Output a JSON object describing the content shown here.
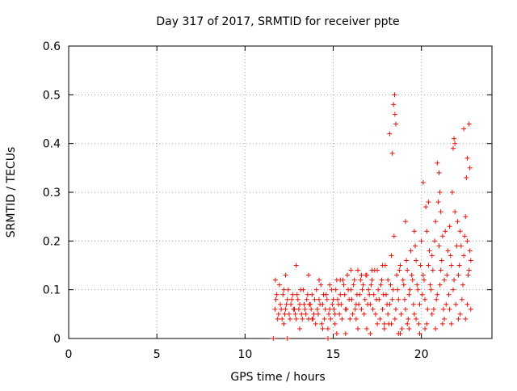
{
  "chart_data": {
    "type": "scatter",
    "title": "Day 317 of 2017, SRMTID for receiver ppte",
    "xlabel": "GPS time / hours",
    "ylabel": "SRMTID / TECUs",
    "xlim": [
      0,
      24
    ],
    "ylim": [
      0,
      0.6
    ],
    "x_ticks": [
      "0",
      "5",
      "10",
      "15",
      "20"
    ],
    "y_ticks": [
      "0",
      "0.1",
      "0.2",
      "0.3",
      "0.4",
      "0.5",
      "0.6"
    ],
    "grid": true,
    "marker": "plus",
    "color": "#e8120a",
    "series": [
      {
        "x": [
          11.7,
          11.8,
          11.9,
          12.0,
          12.1,
          12.2,
          12.3,
          12.4,
          12.5,
          12.6,
          12.7,
          12.8,
          12.9,
          13.0,
          13.1,
          13.2,
          13.3,
          13.4,
          13.5,
          13.6,
          13.7,
          13.8,
          13.9,
          14.0,
          14.1,
          14.2,
          14.3,
          14.4,
          14.5,
          14.6,
          14.7,
          14.8,
          14.9,
          15.0,
          15.1,
          15.2,
          15.3,
          15.4,
          15.5,
          15.6,
          15.7,
          15.8,
          15.9,
          16.0,
          16.1,
          16.2,
          16.3,
          16.4,
          16.5,
          16.6,
          16.7,
          16.8,
          16.9,
          17.0,
          17.1,
          17.2,
          17.3,
          17.4,
          17.5,
          17.6,
          17.7,
          17.8,
          17.9,
          18.0,
          18.1,
          18.2,
          18.3,
          18.4,
          18.5,
          18.6,
          18.7,
          18.8,
          18.9,
          19.0,
          19.1,
          19.2,
          19.3,
          19.4,
          19.5,
          19.6,
          19.7,
          19.8,
          19.9,
          20.0,
          20.1,
          20.2,
          20.3,
          20.4,
          20.5,
          20.6,
          20.7,
          20.8,
          20.9,
          21.0,
          21.1,
          21.2,
          21.3,
          21.4,
          21.5,
          21.6,
          21.7,
          21.8,
          21.9,
          22.0,
          22.1,
          22.2,
          22.3,
          22.4,
          22.5,
          22.6,
          22.7,
          22.8,
          11.75,
          11.85,
          11.95,
          12.05,
          12.15,
          12.25,
          12.35,
          12.45,
          12.55,
          12.65,
          12.75,
          12.85,
          12.95,
          13.05,
          13.15,
          13.25,
          13.35,
          13.45,
          13.55,
          13.65,
          13.75,
          13.85,
          13.95,
          14.05,
          14.15,
          14.25,
          14.35,
          14.45,
          14.55,
          14.65,
          14.75,
          14.85,
          14.95,
          15.05,
          15.15,
          15.25,
          15.35,
          15.45,
          15.55,
          15.65,
          15.75,
          15.85,
          15.95,
          16.05,
          16.15,
          16.25,
          16.35,
          16.45,
          16.55,
          16.65,
          16.75,
          16.85,
          16.95,
          17.05,
          17.15,
          17.25,
          17.35,
          17.45,
          17.55,
          17.65,
          17.75,
          17.85,
          17.95,
          18.05,
          18.15,
          18.25,
          18.35,
          18.45,
          18.55,
          18.65,
          18.75,
          18.85,
          18.95,
          19.05,
          19.15,
          19.25,
          19.35,
          19.45,
          19.55,
          19.65,
          19.75,
          19.85,
          19.95,
          20.05,
          20.15,
          20.25,
          20.35,
          20.45,
          20.55,
          20.65,
          20.75,
          20.85,
          20.95,
          21.05,
          21.15,
          21.25,
          21.35,
          21.45,
          21.55,
          21.65,
          21.75,
          21.85,
          21.95,
          22.05,
          22.15,
          22.25,
          22.35,
          22.45,
          22.55,
          22.65,
          22.75,
          11.72,
          12.3,
          12.9,
          13.6,
          14.2,
          14.8,
          15.4,
          16.0,
          16.6,
          17.2,
          17.8,
          18.2,
          18.35,
          18.42,
          18.48,
          18.5,
          18.55,
          19.1,
          19.6,
          20.1,
          20.4,
          20.9,
          21.0,
          21.05,
          21.1,
          21.8,
          21.85,
          21.9,
          22.4,
          22.6,
          22.7,
          22.75,
          11.6,
          12.4,
          14.7,
          15.2,
          16.4,
          17.1,
          17.9,
          18.3,
          18.8,
          19.3,
          19.9,
          20.3,
          20.8,
          21.3,
          21.7,
          22.2,
          22.5,
          22.8,
          12.2,
          13.1,
          13.8,
          14.4,
          15.1,
          15.7,
          16.3,
          16.9,
          17.5,
          18.1,
          18.7,
          19.2,
          19.7,
          20.2,
          20.6,
          21.2,
          21.6,
          22.1,
          22.6
        ],
        "y": [
          0.06,
          0.09,
          0.05,
          0.07,
          0.04,
          0.1,
          0.06,
          0.08,
          0.05,
          0.07,
          0.09,
          0.06,
          0.04,
          0.08,
          0.07,
          0.05,
          0.1,
          0.06,
          0.08,
          0.04,
          0.07,
          0.09,
          0.05,
          0.03,
          0.06,
          0.08,
          0.11,
          0.07,
          0.04,
          0.09,
          0.02,
          0.06,
          0.1,
          0.08,
          0.05,
          0.12,
          0.07,
          0.09,
          0.04,
          0.11,
          0.06,
          0.13,
          0.08,
          0.1,
          0.05,
          0.12,
          0.07,
          0.14,
          0.09,
          0.06,
          0.11,
          0.08,
          0.13,
          0.1,
          0.07,
          0.12,
          0.09,
          0.05,
          0.14,
          0.08,
          0.11,
          0.06,
          0.03,
          0.09,
          0.12,
          0.07,
          0.17,
          0.1,
          0.04,
          0.13,
          0.08,
          0.15,
          0.02,
          0.11,
          0.06,
          0.14,
          0.09,
          0.18,
          0.12,
          0.05,
          0.16,
          0.1,
          0.07,
          0.2,
          0.13,
          0.08,
          0.22,
          0.15,
          0.11,
          0.17,
          0.06,
          0.24,
          0.09,
          0.19,
          0.14,
          0.21,
          0.12,
          0.07,
          0.18,
          0.23,
          0.15,
          0.1,
          0.26,
          0.19,
          0.13,
          0.22,
          0.08,
          0.17,
          0.25,
          0.2,
          0.14,
          0.16,
          0.08,
          0.04,
          0.11,
          0.06,
          0.09,
          0.05,
          0.07,
          0.1,
          0.04,
          0.08,
          0.06,
          0.05,
          0.09,
          0.06,
          0.1,
          0.04,
          0.07,
          0.05,
          0.09,
          0.07,
          0.06,
          0.04,
          0.08,
          0.1,
          0.05,
          0.07,
          0.03,
          0.09,
          0.06,
          0.08,
          0.05,
          0.04,
          0.07,
          0.06,
          0.1,
          0.08,
          0.05,
          0.07,
          0.12,
          0.09,
          0.06,
          0.1,
          0.04,
          0.08,
          0.11,
          0.06,
          0.09,
          0.07,
          0.12,
          0.1,
          0.05,
          0.13,
          0.07,
          0.09,
          0.11,
          0.06,
          0.14,
          0.08,
          0.1,
          0.04,
          0.12,
          0.09,
          0.15,
          0.07,
          0.03,
          0.11,
          0.08,
          0.21,
          0.06,
          0.1,
          0.14,
          0.05,
          0.12,
          0.08,
          0.16,
          0.04,
          0.1,
          0.13,
          0.07,
          0.19,
          0.11,
          0.03,
          0.15,
          0.09,
          0.12,
          0.27,
          0.06,
          0.18,
          0.1,
          0.14,
          0.2,
          0.08,
          0.28,
          0.11,
          0.16,
          0.06,
          0.22,
          0.13,
          0.09,
          0.17,
          0.3,
          0.12,
          0.07,
          0.24,
          0.15,
          0.19,
          0.11,
          0.21,
          0.33,
          0.13,
          0.18,
          0.12,
          0.13,
          0.15,
          0.13,
          0.12,
          0.11,
          0.12,
          0.14,
          0.13,
          0.14,
          0.15,
          0.42,
          0.38,
          0.48,
          0.5,
          0.46,
          0.44,
          0.24,
          0.22,
          0.32,
          0.28,
          0.36,
          0.34,
          0.3,
          0.26,
          0.39,
          0.41,
          0.4,
          0.43,
          0.37,
          0.44,
          0.35,
          0.0,
          0.0,
          0.0,
          0.01,
          0.02,
          0.01,
          0.02,
          0.03,
          0.01,
          0.02,
          0.01,
          0.03,
          0.02,
          0.04,
          0.03,
          0.05,
          0.04,
          0.06,
          0.03,
          0.02,
          0.04,
          0.02,
          0.03,
          0.01,
          0.04,
          0.02,
          0.03,
          0.05,
          0.01,
          0.03,
          0.04,
          0.02,
          0.05,
          0.03,
          0.06,
          0.04,
          0.07
        ]
      }
    ]
  }
}
